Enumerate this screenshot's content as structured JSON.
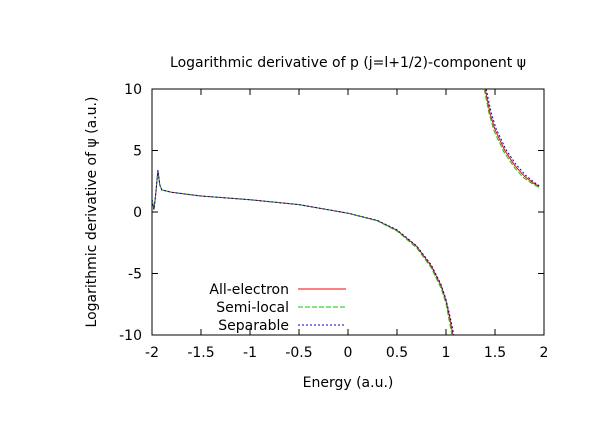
{
  "chart_data": {
    "type": "line",
    "title": "Logarithmic derivative of p (j=l+1/2)-component ψ",
    "xlabel": "Energy (a.u.)",
    "ylabel": "Logarithmic derivative of ψ (a.u.)",
    "xlim": [
      -2,
      2
    ],
    "ylim": [
      -10,
      10
    ],
    "xticks": [
      "-2",
      "-1.5",
      "-1",
      "-0.5",
      "0",
      "0.5",
      "1",
      "1.5",
      "2"
    ],
    "yticks": [
      "10",
      "5",
      "0",
      "-5",
      "-10"
    ],
    "grid": false,
    "legend_position": "bottom-left",
    "series": [
      {
        "name": "All-electron",
        "color": "#ff0000",
        "dash": "solid",
        "segments": [
          [
            [
              -2.0,
              1.0
            ],
            [
              -1.98,
              0.2
            ],
            [
              -1.96,
              1.6
            ],
            [
              -1.94,
              3.4
            ],
            [
              -1.92,
              2.2
            ],
            [
              -1.9,
              1.8
            ],
            [
              -1.8,
              1.6
            ],
            [
              -1.5,
              1.3
            ],
            [
              -1.0,
              1.0
            ],
            [
              -0.5,
              0.6
            ],
            [
              0.0,
              -0.1
            ],
            [
              0.3,
              -0.7
            ],
            [
              0.5,
              -1.5
            ],
            [
              0.7,
              -2.8
            ],
            [
              0.85,
              -4.4
            ],
            [
              0.95,
              -6.0
            ],
            [
              1.0,
              -7.2
            ],
            [
              1.04,
              -8.7
            ],
            [
              1.07,
              -10.0
            ]
          ],
          [
            [
              1.4,
              10.0
            ],
            [
              1.45,
              8.0
            ],
            [
              1.5,
              6.7
            ],
            [
              1.6,
              5.0
            ],
            [
              1.7,
              3.8
            ],
            [
              1.8,
              2.9
            ],
            [
              1.9,
              2.3
            ],
            [
              1.95,
              2.1
            ]
          ]
        ]
      },
      {
        "name": "Semi-local",
        "color": "#00cc00",
        "dash": "dashed",
        "segments": [
          [
            [
              -2.0,
              1.0
            ],
            [
              -1.98,
              0.2
            ],
            [
              -1.96,
              1.6
            ],
            [
              -1.94,
              3.4
            ],
            [
              -1.92,
              2.2
            ],
            [
              -1.9,
              1.8
            ],
            [
              -1.8,
              1.6
            ],
            [
              -1.5,
              1.3
            ],
            [
              -1.0,
              1.0
            ],
            [
              -0.5,
              0.6
            ],
            [
              0.0,
              -0.1
            ],
            [
              0.3,
              -0.72
            ],
            [
              0.5,
              -1.55
            ],
            [
              0.7,
              -2.9
            ],
            [
              0.85,
              -4.55
            ],
            [
              0.95,
              -6.2
            ],
            [
              1.0,
              -7.45
            ],
            [
              1.03,
              -8.7
            ],
            [
              1.06,
              -10.0
            ]
          ],
          [
            [
              1.39,
              10.0
            ],
            [
              1.44,
              8.0
            ],
            [
              1.49,
              6.6
            ],
            [
              1.59,
              4.9
            ],
            [
              1.69,
              3.7
            ],
            [
              1.79,
              2.8
            ],
            [
              1.89,
              2.25
            ],
            [
              1.95,
              2.0
            ]
          ]
        ]
      },
      {
        "name": "Separable",
        "color": "#0000cc",
        "dash": "dotted",
        "segments": [
          [
            [
              -2.0,
              1.0
            ],
            [
              -1.98,
              0.2
            ],
            [
              -1.96,
              1.6
            ],
            [
              -1.94,
              3.4
            ],
            [
              -1.92,
              2.2
            ],
            [
              -1.9,
              1.8
            ],
            [
              -1.8,
              1.6
            ],
            [
              -1.5,
              1.3
            ],
            [
              -1.0,
              1.0
            ],
            [
              -0.5,
              0.6
            ],
            [
              0.0,
              -0.1
            ],
            [
              0.3,
              -0.68
            ],
            [
              0.5,
              -1.45
            ],
            [
              0.7,
              -2.75
            ],
            [
              0.85,
              -4.3
            ],
            [
              0.95,
              -5.9
            ],
            [
              1.0,
              -7.1
            ],
            [
              1.05,
              -8.8
            ],
            [
              1.08,
              -10.0
            ]
          ],
          [
            [
              1.41,
              10.0
            ],
            [
              1.46,
              8.1
            ],
            [
              1.51,
              6.8
            ],
            [
              1.61,
              5.1
            ],
            [
              1.71,
              3.9
            ],
            [
              1.81,
              3.0
            ],
            [
              1.91,
              2.35
            ],
            [
              1.95,
              2.15
            ]
          ]
        ]
      }
    ]
  }
}
